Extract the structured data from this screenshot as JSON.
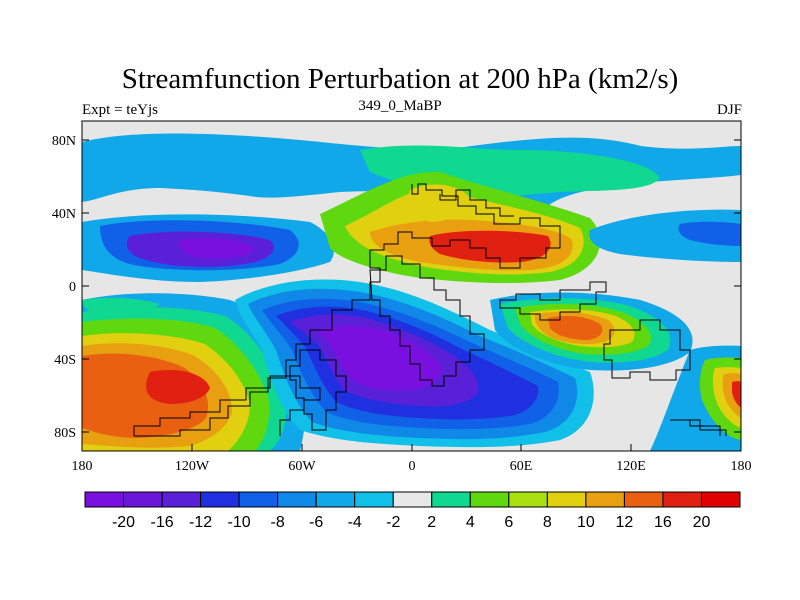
{
  "title": "Streamfunction Perturbation at 200 hPa (km2/s)",
  "left_label": "Expt = teYjs",
  "center_label": "349_0_MaBP",
  "right_label": "DJF",
  "lat_ticks": [
    "80N",
    "40N",
    "0",
    "40S",
    "80S"
  ],
  "lon_ticks": [
    "180",
    "120W",
    "60W",
    "0",
    "60E",
    "120E",
    "180"
  ],
  "colorbar": {
    "labels": [
      "-20",
      "-16",
      "-12",
      "-10",
      "-8",
      "-6",
      "-4",
      "-2",
      "2",
      "4",
      "6",
      "8",
      "10",
      "12",
      "16",
      "20"
    ],
    "colors": [
      "#7a10e0",
      "#6a18d8",
      "#5a20d8",
      "#2030e0",
      "#1060e8",
      "#1088e8",
      "#10a8e8",
      "#10c0e8",
      "#e8e8e8",
      "#10d890",
      "#60d810",
      "#a8e010",
      "#e0d010",
      "#e8a010",
      "#e86010",
      "#e02010",
      "#e00000"
    ]
  },
  "chart_data": {
    "type": "heatmap",
    "title": "Streamfunction Perturbation at 200 hPa (km2/s)",
    "units": "km2/s",
    "level": "200 hPa",
    "season": "DJF",
    "experiment": "teYjs",
    "period": "349_0_MaBP",
    "x_range": [
      -180,
      180
    ],
    "y_range": [
      -90,
      90
    ],
    "features": [
      {
        "lon": -105,
        "lat": 20,
        "value": -16
      },
      {
        "lon": 45,
        "lat": 20,
        "value": 18
      },
      {
        "lon": 20,
        "lat": 50,
        "value": 6
      },
      {
        "lon": -120,
        "lat": -50,
        "value": 14
      },
      {
        "lon": 0,
        "lat": -45,
        "value": -16
      },
      {
        "lon": 85,
        "lat": -25,
        "value": 12
      },
      {
        "lon": 175,
        "lat": -60,
        "value": 16
      },
      {
        "lon": 10,
        "lat": 65,
        "value": 4
      },
      {
        "lon": -120,
        "lat": 70,
        "value": -4
      },
      {
        "lon": 170,
        "lat": 25,
        "value": -8
      }
    ]
  }
}
